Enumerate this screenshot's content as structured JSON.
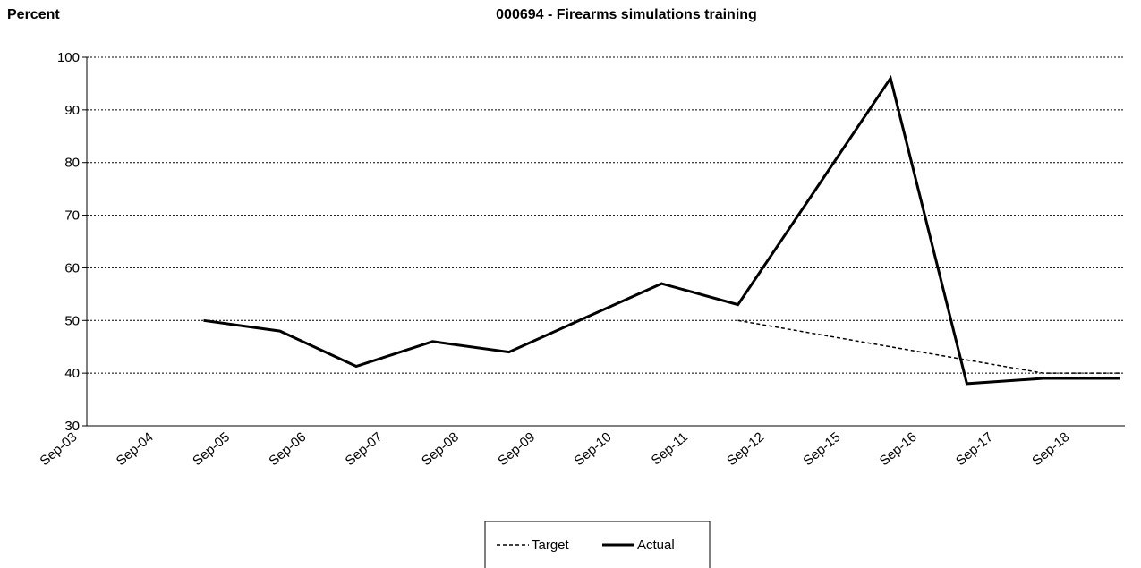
{
  "chart_data": {
    "type": "line",
    "title": "000694 - Firearms simulations training",
    "y_label": "Percent",
    "categories": [
      "Sep-03",
      "Sep-04",
      "Sep-05",
      "Sep-06",
      "Sep-07",
      "Sep-08",
      "Sep-09",
      "Sep-10",
      "Sep-11",
      "Sep-12",
      "Sep-15",
      "Sep-16",
      "Sep-17",
      "Sep-18",
      null
    ],
    "series": [
      {
        "name": "Target",
        "color": "#000000",
        "dash": true,
        "values": [
          null,
          null,
          null,
          null,
          null,
          null,
          null,
          null,
          null,
          50,
          47.5,
          45,
          42.5,
          40,
          40
        ]
      },
      {
        "name": "Actual",
        "color": "#000000",
        "dash": false,
        "values": [
          null,
          null,
          50,
          48,
          41.3,
          46,
          44,
          50.5,
          57,
          53,
          74.5,
          96,
          38,
          39,
          39
        ]
      }
    ],
    "ylim": [
      30,
      100
    ],
    "yticks": [
      30,
      40,
      50,
      60,
      70,
      80,
      90,
      100
    ],
    "grid": true,
    "legend": "bottom"
  }
}
